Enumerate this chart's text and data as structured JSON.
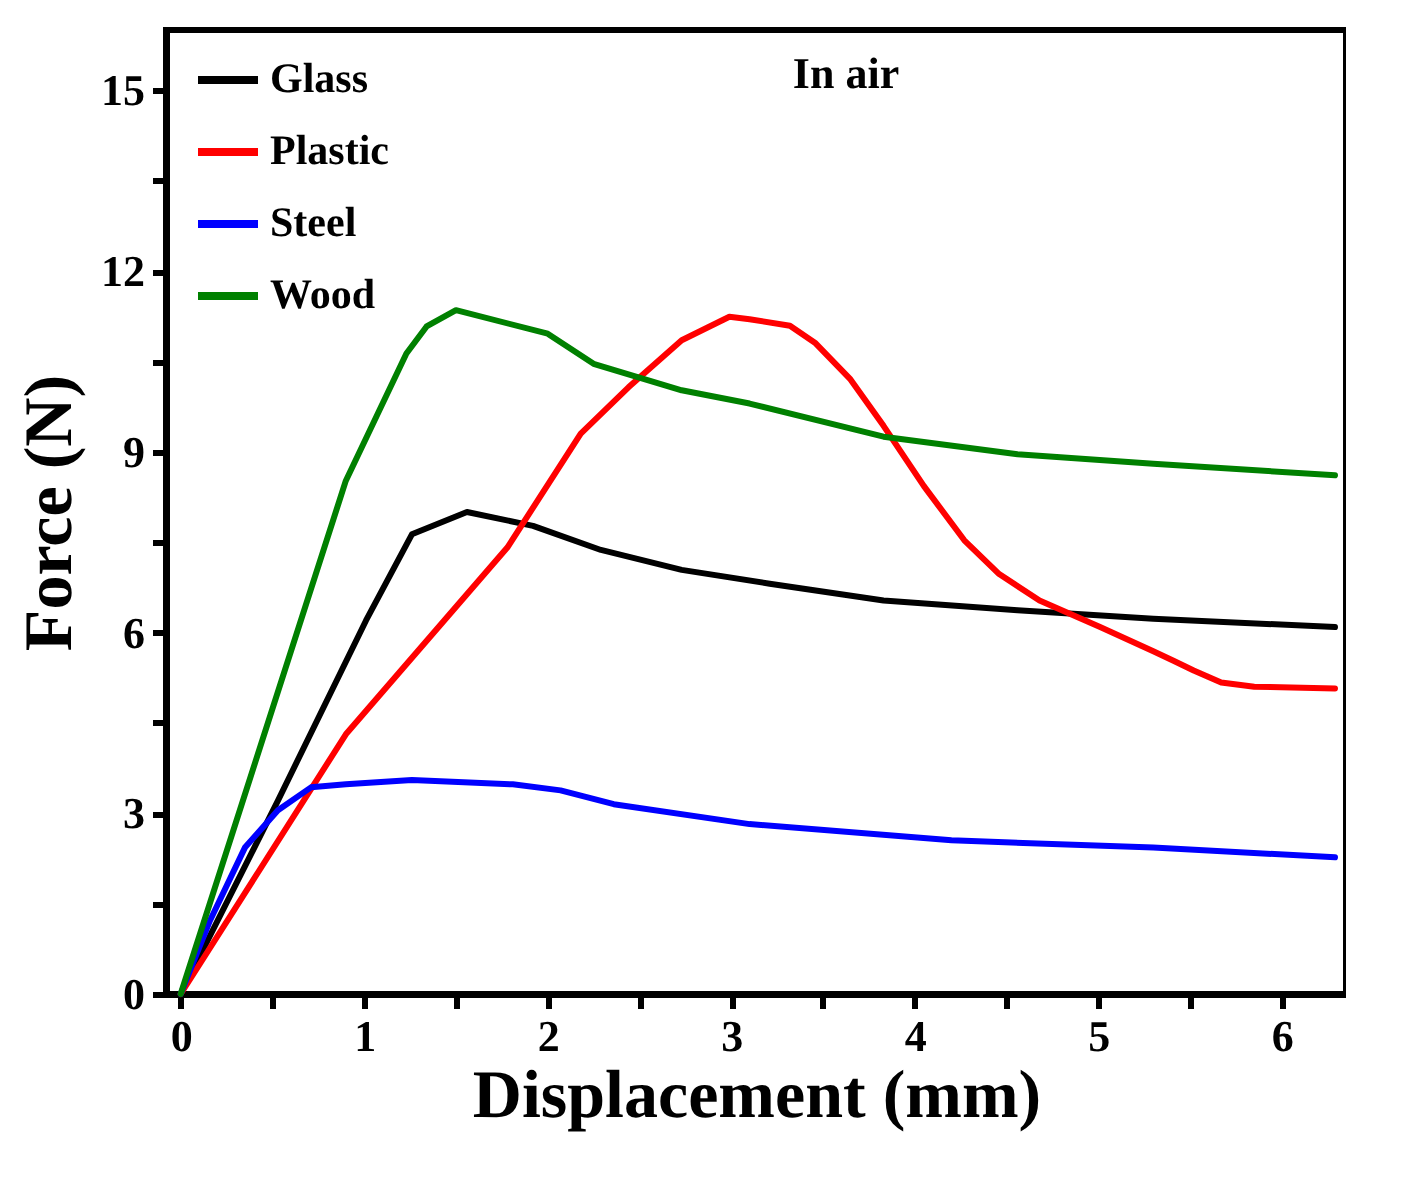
{
  "chart_data": {
    "type": "line",
    "xlabel": "Displacement (mm)",
    "ylabel": "Force (N)",
    "annotations": [
      "In air"
    ],
    "xlim": [
      -0.08,
      6.35
    ],
    "ylim": [
      0,
      16
    ],
    "xticks": [
      0,
      {
        "value": 0.5,
        "label": null
      },
      1,
      {
        "value": 1.5,
        "label": null
      },
      2,
      {
        "value": 2.5,
        "label": null
      },
      3,
      {
        "value": 3.5,
        "label": null
      },
      4,
      {
        "value": 4.5,
        "label": null
      },
      5,
      {
        "value": 5.5,
        "label": null
      },
      6
    ],
    "yticks": [
      0,
      {
        "value": 1.5,
        "label": null
      },
      3,
      {
        "value": 4.5,
        "label": null
      },
      6,
      {
        "value": 7.5,
        "label": null
      },
      9,
      {
        "value": 10.5,
        "label": null
      },
      12,
      {
        "value": 13.5,
        "label": null
      },
      15
    ],
    "grid": false,
    "legend": "top left",
    "line_style": "solid",
    "marker": "none",
    "series": [
      {
        "name": "Glass",
        "color": "#000000",
        "x": [
          0,
          0.53,
          1.01,
          1.26,
          1.56,
          1.92,
          2.29,
          2.73,
          3.21,
          3.83,
          4.56,
          5.3,
          6.29
        ],
        "values": [
          0,
          3.21,
          6.2,
          7.63,
          8.0,
          7.77,
          7.37,
          7.04,
          6.81,
          6.53,
          6.37,
          6.23,
          6.09
        ]
      },
      {
        "name": "Plastic",
        "color": "#ff0000",
        "x": [
          0,
          0.9,
          1.78,
          2.18,
          2.44,
          2.73,
          2.99,
          3.1,
          3.32,
          3.46,
          3.65,
          3.83,
          4.05,
          4.27,
          4.46,
          4.68,
          5.01,
          5.3,
          5.41,
          5.52,
          5.67,
          5.85,
          6.29
        ],
        "values": [
          0,
          4.31,
          7.41,
          9.3,
          10.07,
          10.85,
          11.24,
          11.2,
          11.09,
          10.8,
          10.2,
          9.43,
          8.43,
          7.53,
          6.97,
          6.53,
          6.09,
          5.69,
          5.53,
          5.37,
          5.17,
          5.1,
          5.07
        ]
      },
      {
        "name": "Steel",
        "color": "#0000ff",
        "x": [
          0,
          0.16,
          0.35,
          0.53,
          0.71,
          0.9,
          1.26,
          1.81,
          2.07,
          2.36,
          3.1,
          4.2,
          5.3,
          6.29
        ],
        "values": [
          0,
          1.22,
          2.43,
          3.05,
          3.43,
          3.48,
          3.55,
          3.48,
          3.38,
          3.15,
          2.82,
          2.55,
          2.43,
          2.27
        ]
      },
      {
        "name": "Wood",
        "color": "#008000",
        "x": [
          0,
          0.9,
          1.23,
          1.34,
          1.5,
          2.0,
          2.25,
          2.73,
          3.1,
          3.83,
          4.56,
          5.3,
          6.29
        ],
        "values": [
          0,
          8.52,
          10.63,
          11.08,
          11.35,
          10.96,
          10.46,
          10.02,
          9.8,
          9.25,
          8.96,
          8.8,
          8.61
        ]
      }
    ]
  }
}
